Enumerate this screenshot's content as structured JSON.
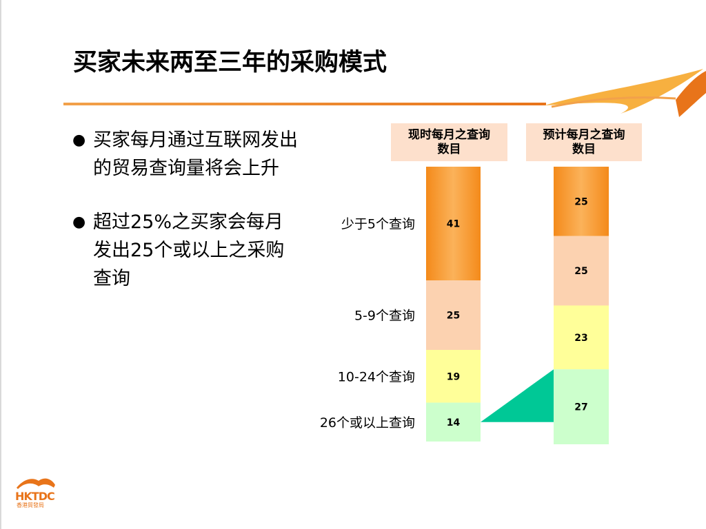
{
  "title": "买家未来两至三年的采购模式",
  "bullets": [
    {
      "text": "买家每月通过互联网发出的贸易查询量将会上升"
    },
    {
      "text": "超过25%之买家会每月发出25个或以上之采购查询"
    }
  ],
  "logo": {
    "text": "HKTDC",
    "sub": "香港貿發局"
  },
  "colors": {
    "accent": "#e8741a",
    "header_bg": "#fde0cc",
    "connector": "#00c896"
  },
  "chart_data": {
    "type": "bar",
    "stacked": true,
    "categories": [
      "现时每月之查询数目",
      "预计每月之查询数目"
    ],
    "segments": [
      "少于5个查询",
      "5-9个查询",
      "10-24个查询",
      "26个或以上查询"
    ],
    "series": [
      {
        "name": "少于5个查询",
        "values": [
          41,
          25
        ],
        "color": "#f7941d"
      },
      {
        "name": "5-9个查询",
        "values": [
          25,
          25
        ],
        "color": "#fcd2b0"
      },
      {
        "name": "10-24个查询",
        "values": [
          19,
          23
        ],
        "color": "#ffff99"
      },
      {
        "name": "26个或以上查询",
        "values": [
          14,
          27
        ],
        "color": "#ccffcc"
      }
    ],
    "legend": "left"
  }
}
